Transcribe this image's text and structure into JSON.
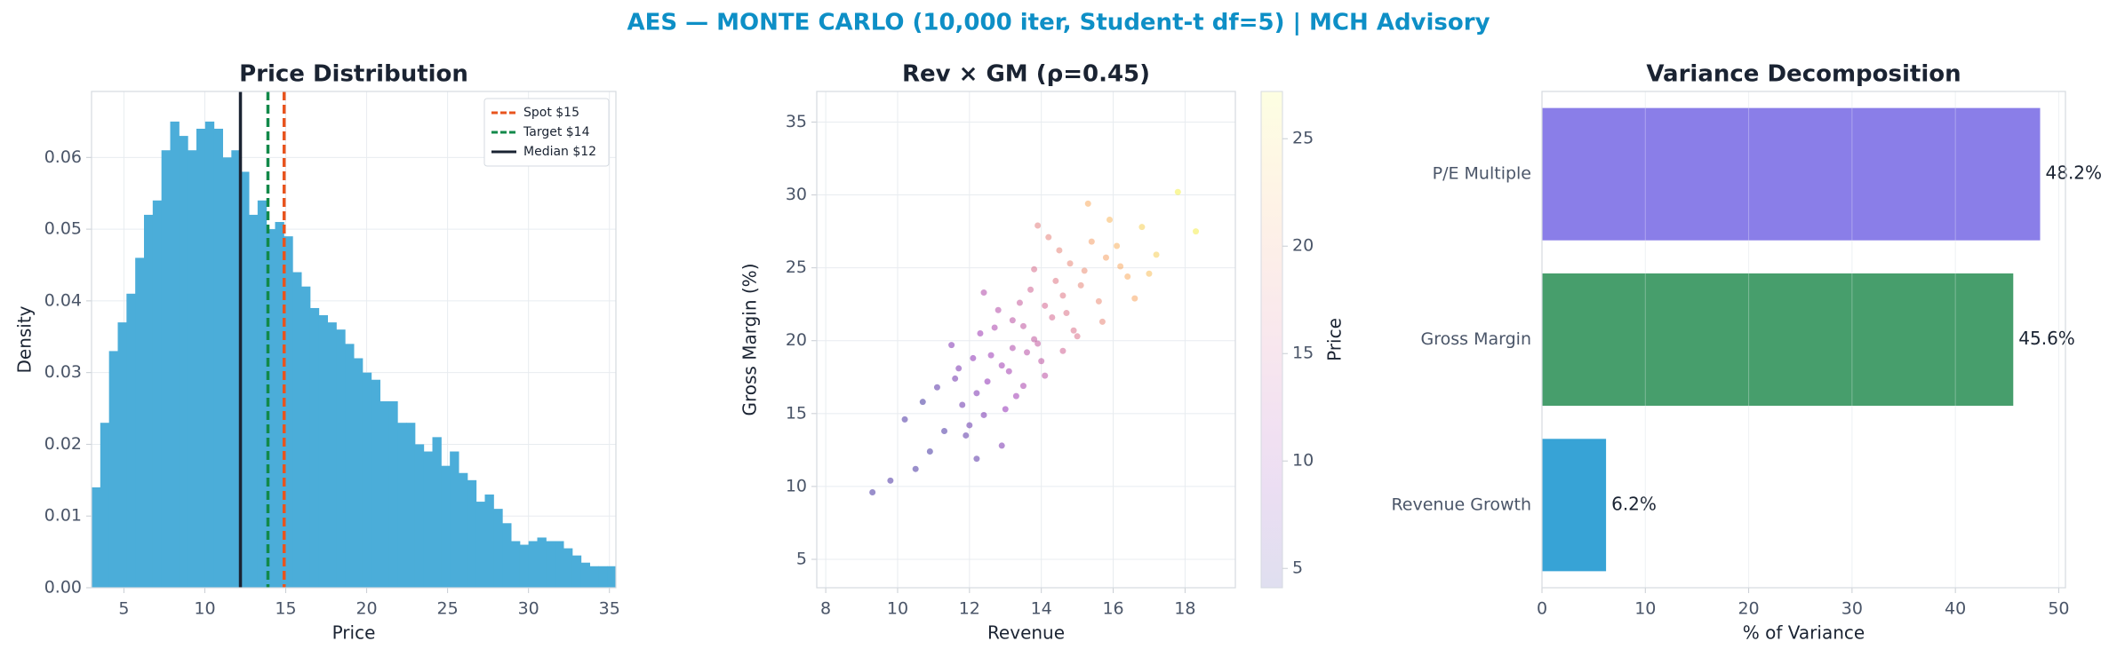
{
  "title": "AES — MONTE CARLO (10,000 iter, Student-t df=5) | MCH Advisory",
  "chart_data": [
    {
      "type": "histogram",
      "title": "Price Distribution",
      "xlabel": "Price",
      "ylabel": "Density",
      "color": "#4badd9",
      "grid": true,
      "bins": [
        3.0,
        3.54,
        4.08,
        4.62,
        5.16,
        5.7,
        6.24,
        6.78,
        7.32,
        7.86,
        8.4,
        8.94,
        9.48,
        10.02,
        10.56,
        11.1,
        11.64,
        12.18,
        12.72,
        13.26,
        13.8,
        14.34,
        14.88,
        15.42,
        15.96,
        16.5,
        17.04,
        17.58,
        18.12,
        18.66,
        19.2,
        19.74,
        20.28,
        20.82,
        21.36,
        21.9,
        22.44,
        22.98,
        23.52,
        24.06,
        24.6,
        25.14,
        25.68,
        26.22,
        26.76,
        27.3,
        27.84,
        28.38,
        28.92,
        29.46,
        30.0,
        30.54,
        31.08,
        31.62,
        32.16,
        32.7,
        33.24,
        33.78,
        34.32,
        34.86,
        35.4
      ],
      "values": [
        0.014,
        0.023,
        0.033,
        0.037,
        0.041,
        0.046,
        0.052,
        0.054,
        0.061,
        0.065,
        0.063,
        0.061,
        0.064,
        0.065,
        0.064,
        0.06,
        0.061,
        0.058,
        0.052,
        0.054,
        0.05,
        0.051,
        0.049,
        0.044,
        0.042,
        0.039,
        0.038,
        0.037,
        0.036,
        0.034,
        0.032,
        0.03,
        0.029,
        0.026,
        0.026,
        0.023,
        0.023,
        0.02,
        0.019,
        0.021,
        0.017,
        0.019,
        0.016,
        0.015,
        0.012,
        0.013,
        0.011,
        0.009,
        0.0065,
        0.006,
        0.0065,
        0.007,
        0.0065,
        0.0065,
        0.0055,
        0.0045,
        0.0035,
        0.003,
        0.003,
        0.003
      ],
      "xlim": [
        3.0,
        35.4
      ],
      "ylim": [
        0,
        0.0692
      ],
      "xticks": [
        5,
        10,
        15,
        20,
        25,
        30,
        35
      ],
      "yticks": [
        {
          "value": 0,
          "label": "0.00"
        },
        {
          "value": 0.01,
          "label": "0.01"
        },
        {
          "value": 0.02,
          "label": "0.02"
        },
        {
          "value": 0.03,
          "label": "0.03"
        },
        {
          "value": 0.04,
          "label": "0.04"
        },
        {
          "value": 0.05,
          "label": "0.05"
        },
        {
          "value": 0.06,
          "label": "0.06"
        }
      ],
      "legend": "upper right",
      "vlines": [
        {
          "label": "Spot $15",
          "value": 14.9,
          "color": "#e8541e",
          "dashed": true
        },
        {
          "label": "Target $14",
          "value": 13.9,
          "color": "#12894a",
          "dashed": true
        },
        {
          "label": "Median $12",
          "value": 12.2,
          "color": "#1a2332",
          "dashed": false
        }
      ]
    },
    {
      "type": "scatter",
      "title": "Rev × GM (ρ=0.45)",
      "xlabel": "Revenue",
      "ylabel": "Gross Margin (%)",
      "grid": true,
      "colormap": "plasma",
      "x": [
        13.2,
        12.5,
        14.1,
        13.8,
        12.9,
        15.2,
        11.8,
        14.6,
        13.5,
        12.2,
        16.1,
        13.9,
        12.7,
        14.8,
        11.3,
        15.6,
        13.1,
        14.3,
        12.4,
        16.8,
        10.9,
        13.7,
        15.0,
        12.1,
        14.4,
        13.3,
        11.6,
        15.9,
        12.8,
        14.0,
        17.2,
        10.5,
        13.6,
        15.4,
        12.3,
        14.7,
        11.9,
        16.4,
        13.0,
        14.2,
        9.8,
        15.1,
        12.6,
        13.4,
        17.8,
        11.1,
        14.9,
        12.0,
        16.2,
        13.8,
        10.2,
        15.7,
        12.9,
        14.5,
        11.5,
        18.3,
        13.2,
        14.1,
        12.4,
        16.6,
        9.3,
        15.3,
        11.7,
        14.6,
        13.5,
        17.0,
        10.7,
        13.9,
        15.8,
        12.2
      ],
      "y": [
        19.5,
        17.2,
        22.4,
        20.1,
        18.3,
        24.8,
        15.6,
        23.1,
        21.0,
        16.4,
        26.5,
        19.8,
        20.9,
        25.3,
        13.8,
        22.7,
        17.9,
        21.6,
        14.9,
        27.8,
        12.4,
        23.5,
        20.3,
        18.8,
        24.1,
        16.2,
        17.4,
        28.3,
        22.1,
        18.6,
        25.9,
        11.2,
        19.2,
        26.8,
        20.5,
        21.9,
        13.5,
        24.4,
        15.3,
        27.1,
        10.4,
        23.8,
        19.0,
        22.6,
        30.2,
        16.8,
        20.7,
        14.2,
        25.1,
        24.9,
        14.6,
        21.3,
        12.8,
        26.2,
        19.7,
        27.5,
        21.4,
        17.6,
        23.3,
        22.9,
        9.6,
        29.4,
        18.1,
        19.3,
        16.9,
        24.6,
        15.8,
        27.9,
        25.7,
        11.9
      ],
      "c": [
        12.1,
        9.4,
        15.5,
        13.7,
        10.8,
        19.1,
        7.1,
        17.0,
        13.5,
        8.3,
        22.0,
        13.8,
        11.7,
        18.5,
        5.1,
        19.0,
        11.1,
        15.6,
        8.0,
        24.2,
        4.8,
        15.2,
        16.5,
        9.3,
        17.0,
        10.7,
        7.5,
        22.4,
        12.5,
        13.4,
        24.1,
        5.0,
        12.8,
        20.6,
        10.6,
        16.6,
        6.2,
        21.6,
        9.6,
        18.1,
        5.2,
        18.4,
        10.5,
        14.1,
        26.5,
        6.1,
        16.4,
        6.8,
        21.5,
        16.1,
        5.3,
        18.5,
        8.1,
        18.3,
        8.5,
        26.2,
        13.0,
        13.1,
        12.2,
        21.3,
        4.9,
        21.7,
        8.1,
        15.1,
        11.5,
        23.0,
        4.7,
        17.8,
        20.9,
        6.1
      ],
      "xlim": [
        7.75,
        19.4
      ],
      "ylim": [
        3.05,
        37.1
      ],
      "xticks": [
        8,
        10,
        12,
        14,
        16,
        18
      ],
      "yticks": [
        5,
        10,
        15,
        20,
        25,
        30,
        35
      ],
      "colorbar_label": "Price",
      "clim": [
        4.1,
        27.2
      ],
      "cticks": [
        5,
        10,
        15,
        20,
        25
      ]
    },
    {
      "type": "barh",
      "title": "Variance Decomposition",
      "xlabel": "% of Variance",
      "grid": true,
      "categories": [
        "Revenue Growth",
        "Gross Margin",
        "P/E Multiple"
      ],
      "values": [
        6.2,
        45.6,
        48.2
      ],
      "value_labels": [
        "6.2%",
        "45.6%",
        "48.2%"
      ],
      "colors": [
        "#37a3d6",
        "#479e6c",
        "#8a7ee8"
      ],
      "xlim": [
        0,
        50.65
      ],
      "xticks": [
        0,
        10,
        20,
        30,
        40,
        50
      ]
    }
  ]
}
